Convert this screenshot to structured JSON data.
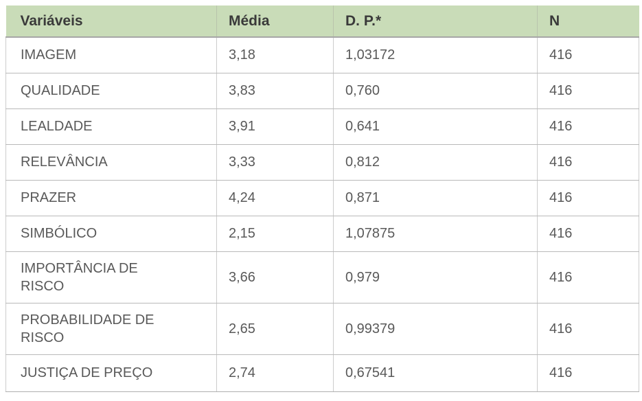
{
  "table": {
    "columns": [
      {
        "label": "Variáveis"
      },
      {
        "label": "Média"
      },
      {
        "label": "D. P.*"
      },
      {
        "label": "N"
      }
    ],
    "rows": [
      {
        "variavel": "IMAGEM",
        "media": "3,18",
        "dp": "1,03172",
        "n": "416"
      },
      {
        "variavel": "QUALIDADE",
        "media": "3,83",
        "dp": "0,760",
        "n": "416"
      },
      {
        "variavel": "LEALDADE",
        "media": "3,91",
        "dp": "0,641",
        "n": "416"
      },
      {
        "variavel": "RELEVÂNCIA",
        "media": "3,33",
        "dp": "0,812",
        "n": "416"
      },
      {
        "variavel": "PRAZER",
        "media": "4,24",
        "dp": "0,871",
        "n": "416"
      },
      {
        "variavel": "SIMBÓLICO",
        "media": "2,15",
        "dp": "1,07875",
        "n": "416"
      },
      {
        "variavel": "IMPORTÂNCIA DE\nRISCO",
        "media": "3,66",
        "dp": "0,979",
        "n": "416"
      },
      {
        "variavel": "PROBABILIDADE DE\nRISCO",
        "media": "2,65",
        "dp": "0,99379",
        "n": "416"
      },
      {
        "variavel": "JUSTIÇA DE PREÇO",
        "media": "2,74",
        "dp": "0,67541",
        "n": "416"
      }
    ]
  },
  "colors": {
    "header_background": "#c9dcb8",
    "header_text": "#3a3a3a",
    "body_text": "#595959",
    "row_border": "#b9b9b9",
    "column_border": "#cccccc"
  }
}
